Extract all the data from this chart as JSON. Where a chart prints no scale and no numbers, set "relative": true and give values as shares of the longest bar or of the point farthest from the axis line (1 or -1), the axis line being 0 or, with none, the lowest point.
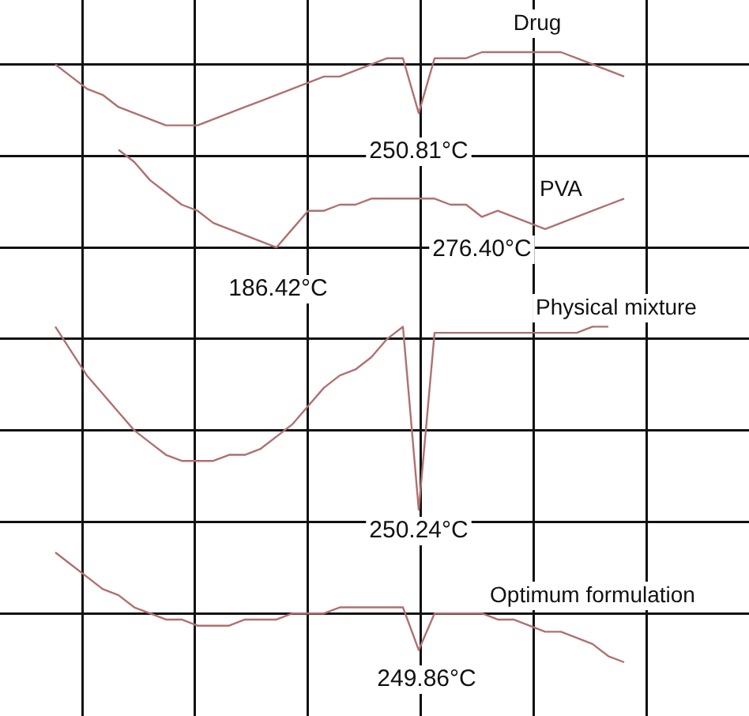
{
  "chart_data": {
    "type": "line",
    "relative": true,
    "grid": true,
    "marker": "none",
    "categories": [
      null,
      null,
      null,
      null,
      null,
      null,
      null,
      null,
      null,
      null,
      null,
      null,
      null,
      null,
      null,
      null,
      null,
      null,
      null,
      null,
      null,
      null,
      null,
      null,
      null,
      null,
      null,
      null,
      null,
      null,
      null,
      null,
      null,
      null,
      null,
      null,
      null
    ],
    "series": [
      {
        "name": "Drug",
        "color": "#b07070",
        "values": [
          0.98,
          0.96,
          0.94,
          0.93,
          0.91,
          0.9,
          0.89,
          0.88,
          0.88,
          0.88,
          0.89,
          0.9,
          0.91,
          0.92,
          0.93,
          0.94,
          0.95,
          0.96,
          0.96,
          0.97,
          0.98,
          0.99,
          0.99,
          0.9,
          0.99,
          0.99,
          0.99,
          1.0,
          1.0,
          1.0,
          1.0,
          1.0,
          1.0,
          0.99,
          0.98,
          0.97,
          0.96
        ]
      },
      {
        "name": "PVA",
        "color": "#b07070",
        "values": [
          null,
          null,
          null,
          null,
          0.84,
          0.82,
          0.79,
          0.77,
          0.75,
          0.74,
          0.72,
          0.71,
          0.7,
          0.69,
          0.68,
          0.71,
          0.74,
          0.74,
          0.75,
          0.75,
          0.76,
          0.76,
          0.76,
          0.76,
          0.76,
          0.75,
          0.75,
          0.73,
          0.74,
          0.73,
          0.72,
          0.71,
          0.72,
          0.73,
          0.74,
          0.75,
          0.76
        ]
      },
      {
        "name": "Physical mixture",
        "color": "#b07070",
        "values": [
          0.55,
          0.51,
          0.47,
          0.44,
          0.41,
          0.38,
          0.36,
          0.34,
          0.33,
          0.33,
          0.33,
          0.34,
          0.34,
          0.35,
          0.37,
          0.39,
          0.42,
          0.45,
          0.47,
          0.48,
          0.5,
          0.53,
          0.55,
          0.25,
          0.54,
          0.54,
          0.54,
          0.54,
          0.54,
          0.54,
          0.54,
          0.54,
          0.54,
          0.54,
          0.55,
          0.55,
          null
        ]
      },
      {
        "name": "Optimum formulation",
        "color": "#b07070",
        "values": [
          0.18,
          0.16,
          0.14,
          0.12,
          0.11,
          0.09,
          0.08,
          0.07,
          0.07,
          0.06,
          0.06,
          0.06,
          0.07,
          0.07,
          0.07,
          0.08,
          0.08,
          0.08,
          0.09,
          0.09,
          0.09,
          0.09,
          0.09,
          0.02,
          0.08,
          0.08,
          0.08,
          0.08,
          0.07,
          0.07,
          0.06,
          0.05,
          0.05,
          0.04,
          0.03,
          0.01,
          0.0
        ]
      }
    ],
    "annotations": [
      "250.81°C",
      "186.42°C",
      "276.40°C",
      "250.24°C",
      "249.86°C"
    ]
  }
}
